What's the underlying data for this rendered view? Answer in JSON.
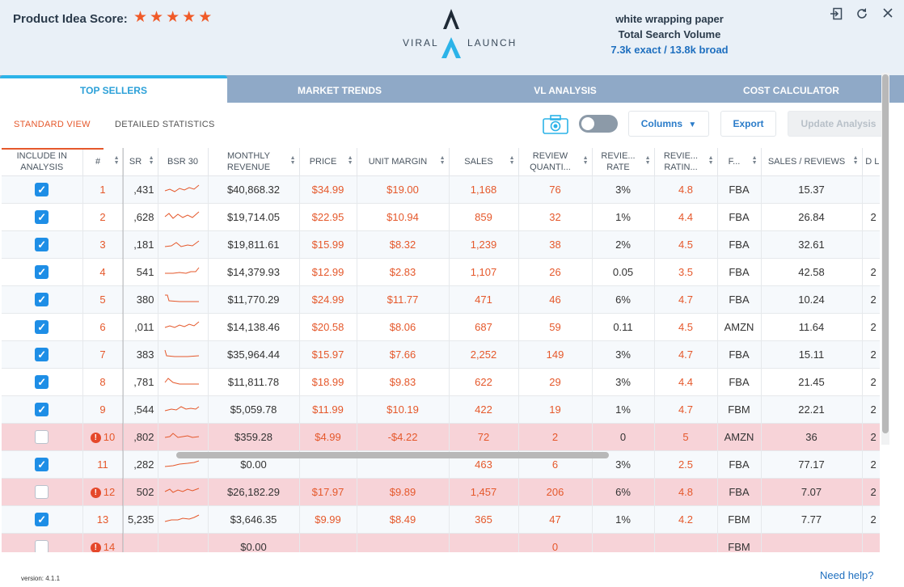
{
  "header": {
    "score_label": "Product Idea Score:",
    "stars": 5,
    "logo_left": "VIRAL",
    "logo_right": "LAUNCH",
    "keyword": "white wrapping paper",
    "volume_label": "Total Search Volume",
    "volume_value": "7.3k exact / 13.8k broad",
    "icons": [
      "exit-icon",
      "refresh-icon",
      "close-icon"
    ],
    "accent_color": "#e5582b"
  },
  "tabs": [
    "TOP SELLERS",
    "MARKET TRENDS",
    "VL ANALYSIS",
    "COST CALCULATOR"
  ],
  "toolbar": {
    "standard_view": "STANDARD VIEW",
    "detailed_statistics": "DETAILED STATISTICS",
    "columns": "Columns",
    "export": "Export",
    "update": "Update Analysis"
  },
  "table": {
    "columns": {
      "include": "INCLUDE IN ANALYSIS",
      "num": "#",
      "bsr": "SR",
      "bsr30": "BSR 30",
      "revenue": "MONTHLY REVENUE",
      "price": "PRICE",
      "margin": "UNIT MARGIN",
      "sales": "SALES",
      "review_qty": "REVIEW QUANTI...",
      "review_rate": "REVIE... RATE",
      "review_rating": "REVIE... RATIN...",
      "fulfillment": "F...",
      "sales_reviews": "SALES / REVIEWS",
      "extra": "D LIS"
    },
    "rows": [
      {
        "checked": true,
        "num": "1",
        "bsr": ",431",
        "revenue": "$40,868.32",
        "price": "$34.99",
        "margin": "$19.00",
        "sales": "1,168",
        "rq": "76",
        "rr": "3%",
        "rating": "4.8",
        "f": "FBA",
        "sr": "15.37",
        "extra": "",
        "warn": false
      },
      {
        "checked": true,
        "num": "2",
        "bsr": ",628",
        "revenue": "$19,714.05",
        "price": "$22.95",
        "margin": "$10.94",
        "sales": "859",
        "rq": "32",
        "rr": "1%",
        "rating": "4.4",
        "f": "FBA",
        "sr": "26.84",
        "extra": "2",
        "warn": false
      },
      {
        "checked": true,
        "num": "3",
        "bsr": ",181",
        "revenue": "$19,811.61",
        "price": "$15.99",
        "margin": "$8.32",
        "sales": "1,239",
        "rq": "38",
        "rr": "2%",
        "rating": "4.5",
        "f": "FBA",
        "sr": "32.61",
        "extra": "",
        "warn": false
      },
      {
        "checked": true,
        "num": "4",
        "bsr": "541",
        "revenue": "$14,379.93",
        "price": "$12.99",
        "margin": "$2.83",
        "sales": "1,107",
        "rq": "26",
        "rr": "0.05",
        "rating": "3.5",
        "f": "FBA",
        "sr": "42.58",
        "extra": "2",
        "warn": false
      },
      {
        "checked": true,
        "num": "5",
        "bsr": "380",
        "revenue": "$11,770.29",
        "price": "$24.99",
        "margin": "$11.77",
        "sales": "471",
        "rq": "46",
        "rr": "6%",
        "rating": "4.7",
        "f": "FBA",
        "sr": "10.24",
        "extra": "2",
        "warn": false
      },
      {
        "checked": true,
        "num": "6",
        "bsr": ",011",
        "revenue": "$14,138.46",
        "price": "$20.58",
        "margin": "$8.06",
        "sales": "687",
        "rq": "59",
        "rr": "0.11",
        "rating": "4.5",
        "f": "AMZN",
        "sr": "11.64",
        "extra": "2",
        "warn": false
      },
      {
        "checked": true,
        "num": "7",
        "bsr": "383",
        "revenue": "$35,964.44",
        "price": "$15.97",
        "margin": "$7.66",
        "sales": "2,252",
        "rq": "149",
        "rr": "3%",
        "rating": "4.7",
        "f": "FBA",
        "sr": "15.11",
        "extra": "2",
        "warn": false
      },
      {
        "checked": true,
        "num": "8",
        "bsr": ",781",
        "revenue": "$11,811.78",
        "price": "$18.99",
        "margin": "$9.83",
        "sales": "622",
        "rq": "29",
        "rr": "3%",
        "rating": "4.4",
        "f": "FBA",
        "sr": "21.45",
        "extra": "2",
        "warn": false
      },
      {
        "checked": true,
        "num": "9",
        "bsr": ",544",
        "revenue": "$5,059.78",
        "price": "$11.99",
        "margin": "$10.19",
        "sales": "422",
        "rq": "19",
        "rr": "1%",
        "rating": "4.7",
        "f": "FBM",
        "sr": "22.21",
        "extra": "2",
        "warn": false
      },
      {
        "checked": false,
        "num": "10",
        "bsr": ",802",
        "revenue": "$359.28",
        "price": "$4.99",
        "margin": "-$4.22",
        "sales": "72",
        "rq": "2",
        "rr": "0",
        "rating": "5",
        "f": "AMZN",
        "sr": "36",
        "extra": "2",
        "warn": true
      },
      {
        "checked": true,
        "num": "11",
        "bsr": ",282",
        "revenue": "$0.00",
        "price": "",
        "margin": "",
        "sales": "463",
        "rq": "6",
        "rr": "3%",
        "rating": "2.5",
        "f": "FBA",
        "sr": "77.17",
        "extra": "2",
        "warn": false
      },
      {
        "checked": false,
        "num": "12",
        "bsr": "502",
        "revenue": "$26,182.29",
        "price": "$17.97",
        "margin": "$9.89",
        "sales": "1,457",
        "rq": "206",
        "rr": "6%",
        "rating": "4.8",
        "f": "FBA",
        "sr": "7.07",
        "extra": "2",
        "warn": true
      },
      {
        "checked": true,
        "num": "13",
        "bsr": "5,235",
        "revenue": "$3,646.35",
        "price": "$9.99",
        "margin": "$8.49",
        "sales": "365",
        "rq": "47",
        "rr": "1%",
        "rating": "4.2",
        "f": "FBM",
        "sr": "7.77",
        "extra": "2",
        "warn": false
      },
      {
        "checked": false,
        "num": "14",
        "bsr": "",
        "revenue": "$0.00",
        "price": "",
        "margin": "",
        "sales": "",
        "rq": "0",
        "rr": "",
        "rating": "",
        "f": "FBM",
        "sr": "",
        "extra": "",
        "warn": true
      }
    ]
  },
  "footer": {
    "version": "version: 4.1.1",
    "help": "Need help?"
  }
}
